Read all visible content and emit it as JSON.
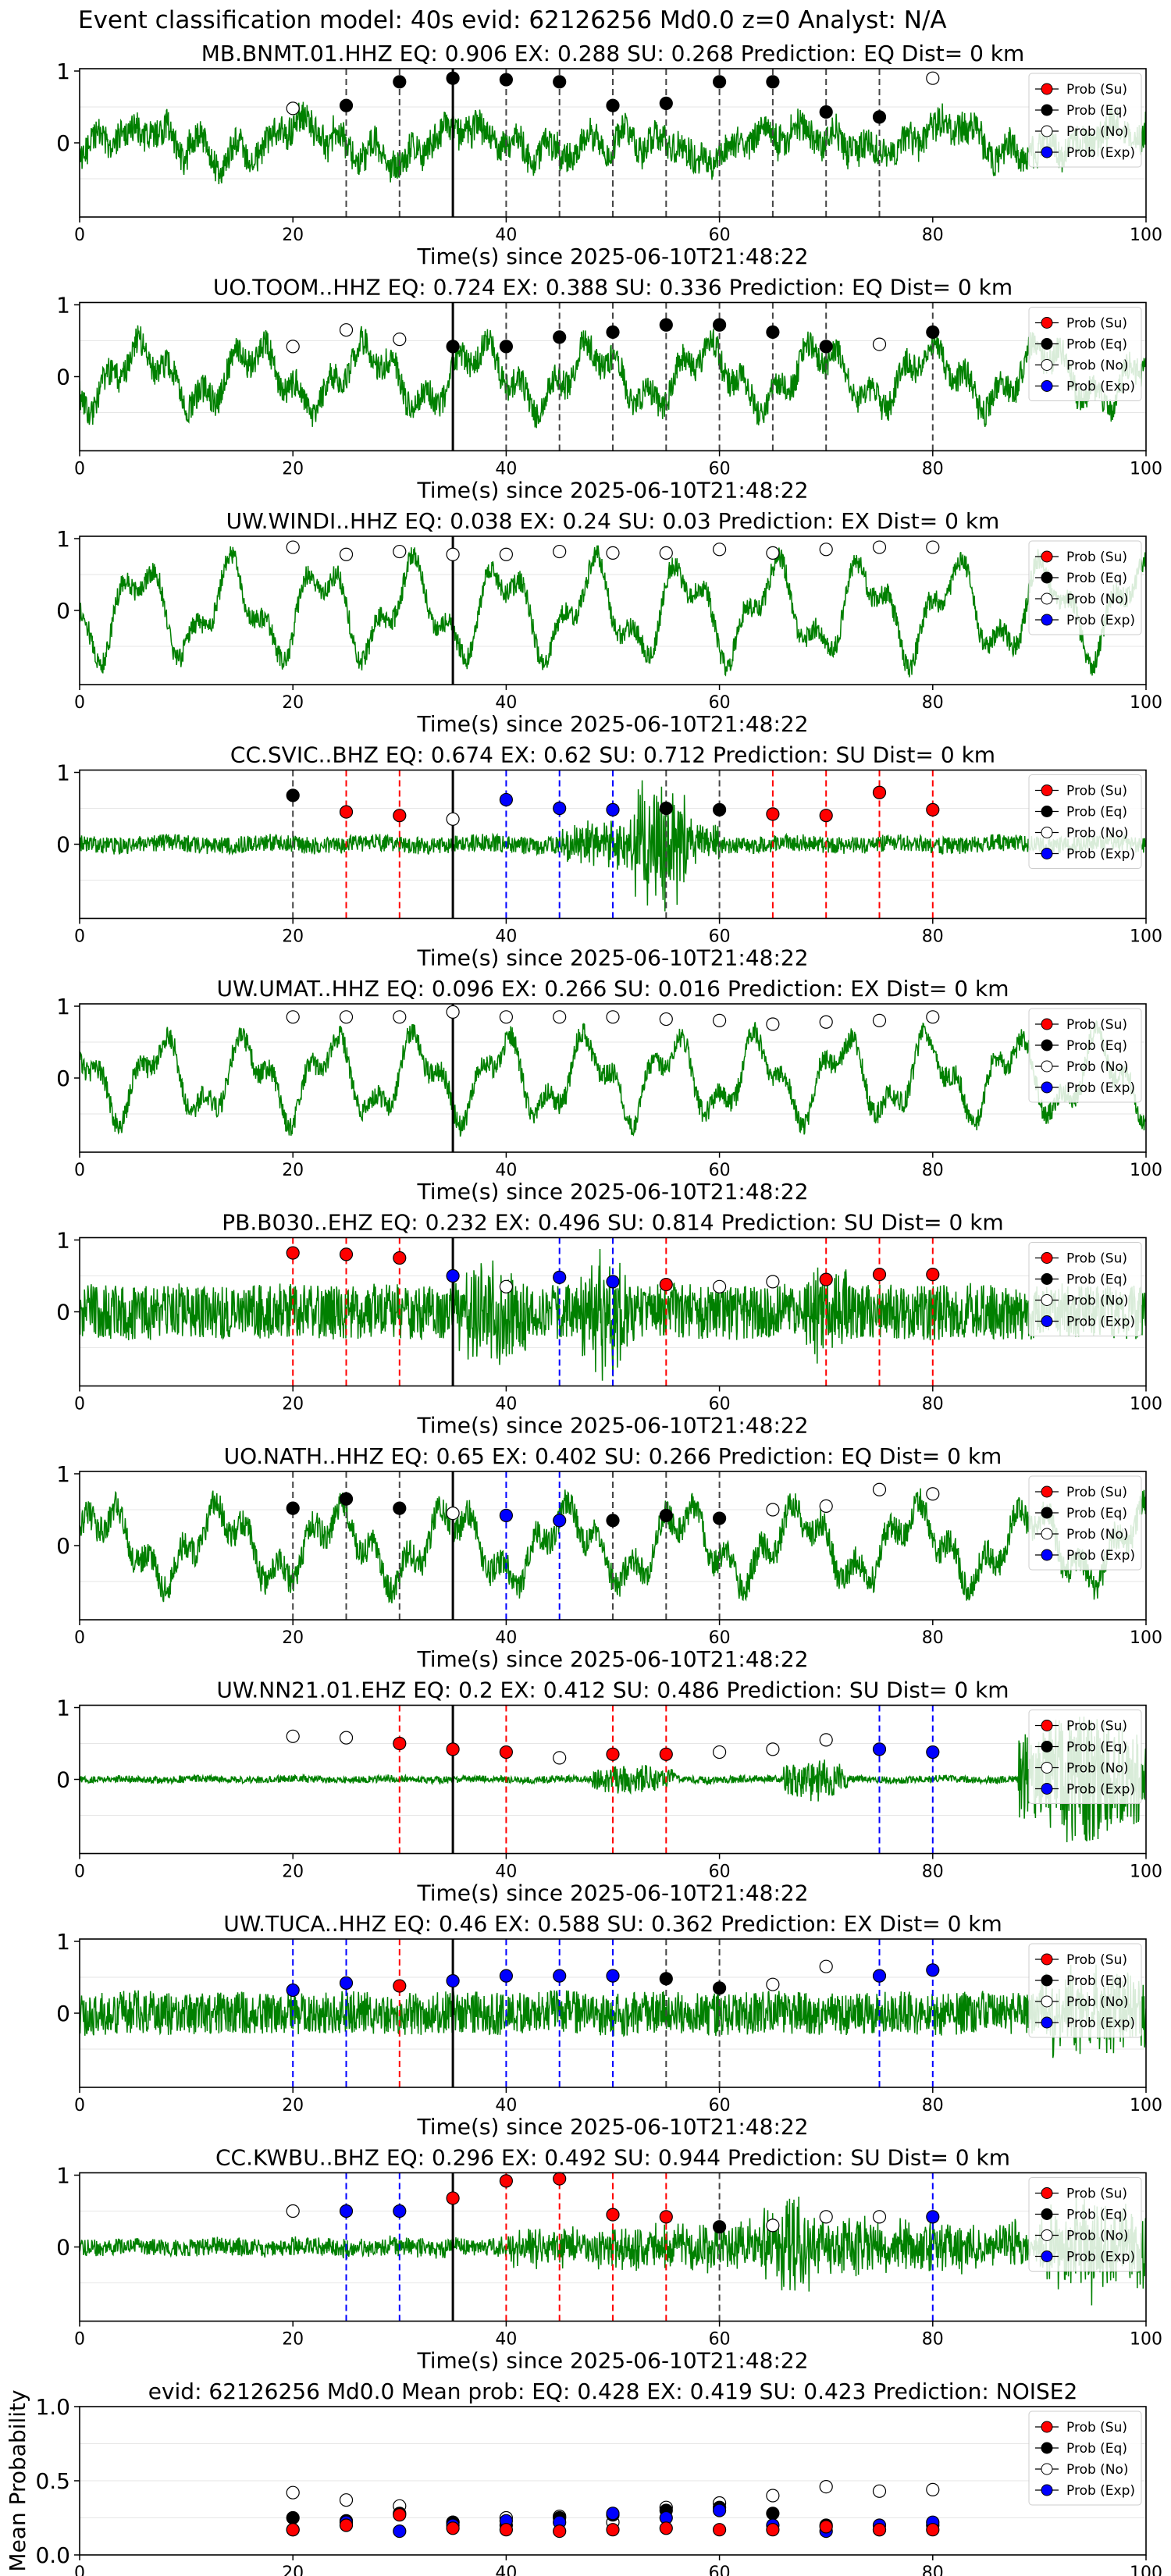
{
  "figure": {
    "suptitle": "Event classification model: 40s evid: 62126256 Md0.0 z=0 Analyst: N/A",
    "x_axis_label": "Time(s) since 2025-06-10T21:48:22",
    "pick_time": 35,
    "colors": {
      "waveform": "#008000",
      "su": "#ff0000",
      "eq": "#000000",
      "no": "#ffffff",
      "exp": "#0000ff",
      "pick": "#000000"
    }
  },
  "chart_data": [
    {
      "type": "line",
      "title": "MB.BNMT.01.HHZ   EQ: 0.906  EX: 0.288  SU: 0.268   Prediction: EQ    Dist= 0 km",
      "xlim": [
        0,
        100
      ],
      "ylim": [
        -1,
        1
      ],
      "xticks": [
        0,
        20,
        40,
        60,
        80,
        100
      ],
      "yticks": [
        1,
        0
      ],
      "waveform": {
        "style": "mixed",
        "noise": 0.22,
        "amp": 0.35
      },
      "legend": [
        "Prob (Su)",
        "Prob (Eq)",
        "Prob (No)",
        "Prob (Exp)"
      ],
      "windows": [
        20,
        25,
        30,
        35,
        40,
        45,
        50,
        55,
        60,
        65,
        70,
        75,
        80
      ],
      "predicted": [
        "No",
        "Eq",
        "Eq",
        "Eq",
        "Eq",
        "Eq",
        "Eq",
        "Eq",
        "Eq",
        "Eq",
        "Eq",
        "Eq",
        "No"
      ],
      "probs": [
        0.48,
        0.52,
        0.85,
        0.9,
        0.88,
        0.85,
        0.52,
        0.55,
        0.85,
        0.85,
        0.43,
        0.36,
        0.9
      ]
    },
    {
      "type": "line",
      "title": "UO.TOOM..HHZ   EQ: 0.724  EX: 0.388  SU: 0.336   Prediction: EQ    Dist= 0 km",
      "xlim": [
        0,
        100
      ],
      "ylim": [
        -1,
        1
      ],
      "xticks": [
        0,
        20,
        40,
        60,
        80,
        100
      ],
      "yticks": [
        1,
        0
      ],
      "waveform": {
        "style": "oscillating",
        "noise": 0.2,
        "amp": 0.5
      },
      "legend": [
        "Prob (Su)",
        "Prob (Eq)",
        "Prob (No)",
        "Prob (Exp)"
      ],
      "windows": [
        20,
        25,
        30,
        35,
        40,
        45,
        50,
        55,
        60,
        65,
        70,
        75,
        80
      ],
      "predicted": [
        "No",
        "No",
        "No",
        "Eq",
        "Eq",
        "Eq",
        "Eq",
        "Eq",
        "Eq",
        "Eq",
        "Eq",
        "No",
        "Eq"
      ],
      "probs": [
        0.42,
        0.65,
        0.52,
        0.42,
        0.42,
        0.55,
        0.62,
        0.72,
        0.72,
        0.62,
        0.42,
        0.45,
        0.62
      ]
    },
    {
      "type": "line",
      "title": "UW.WINDI..HHZ   EQ: 0.038  EX: 0.24  SU: 0.03   Prediction: EX    Dist= 0 km",
      "xlim": [
        0,
        100
      ],
      "ylim": [
        -1,
        1
      ],
      "xticks": [
        0,
        20,
        40,
        60,
        80,
        100
      ],
      "yticks": [
        1,
        0
      ],
      "waveform": {
        "style": "oscillating",
        "noise": 0.15,
        "amp": 0.75
      },
      "legend": [
        "Prob (Su)",
        "Prob (Eq)",
        "Prob (No)",
        "Prob (Exp)"
      ],
      "windows": [
        20,
        25,
        30,
        35,
        40,
        45,
        50,
        55,
        60,
        65,
        70,
        75,
        80
      ],
      "predicted": [
        "No",
        "No",
        "No",
        "No",
        "No",
        "No",
        "No",
        "No",
        "No",
        "No",
        "No",
        "No",
        "No"
      ],
      "probs": [
        0.88,
        0.78,
        0.82,
        0.78,
        0.78,
        0.82,
        0.8,
        0.8,
        0.85,
        0.8,
        0.85,
        0.88,
        0.88
      ]
    },
    {
      "type": "line",
      "title": "CC.SVIC..BHZ   EQ: 0.674  EX: 0.62  SU: 0.712   Prediction: SU    Dist= 0 km",
      "xlim": [
        0,
        100
      ],
      "ylim": [
        -1,
        1
      ],
      "xticks": [
        0,
        20,
        40,
        60,
        80,
        100
      ],
      "yticks": [
        1,
        0
      ],
      "waveform": {
        "style": "burst",
        "noise": 0.12,
        "amp": 0.12,
        "burst": [
          [
            52,
            57,
            0.9
          ],
          [
            45,
            60,
            0.35
          ]
        ]
      },
      "legend": [
        "Prob (Su)",
        "Prob (Eq)",
        "Prob (No)",
        "Prob (Exp)"
      ],
      "windows": [
        20,
        25,
        30,
        35,
        40,
        45,
        50,
        55,
        60,
        65,
        70,
        75,
        80
      ],
      "predicted": [
        "Eq",
        "Su",
        "Su",
        "No",
        "Exp",
        "Exp",
        "Exp",
        "Eq",
        "Eq",
        "Su",
        "Su",
        "Su",
        "Su"
      ],
      "probs": [
        0.68,
        0.45,
        0.4,
        0.35,
        0.62,
        0.5,
        0.48,
        0.5,
        0.48,
        0.42,
        0.4,
        0.72,
        0.48
      ]
    },
    {
      "type": "line",
      "title": "UW.UMAT..HHZ   EQ: 0.096  EX: 0.266  SU: 0.016   Prediction: EX    Dist= 0 km",
      "xlim": [
        0,
        100
      ],
      "ylim": [
        -1,
        1
      ],
      "xticks": [
        0,
        20,
        40,
        60,
        80,
        100
      ],
      "yticks": [
        1,
        0
      ],
      "waveform": {
        "style": "oscillating",
        "noise": 0.15,
        "amp": 0.65
      },
      "legend": [
        "Prob (Su)",
        "Prob (Eq)",
        "Prob (No)",
        "Prob (Exp)"
      ],
      "windows": [
        20,
        25,
        30,
        35,
        40,
        45,
        50,
        55,
        60,
        65,
        70,
        75,
        80
      ],
      "predicted": [
        "No",
        "No",
        "No",
        "No",
        "No",
        "No",
        "No",
        "No",
        "No",
        "No",
        "No",
        "No",
        "No"
      ],
      "probs": [
        0.85,
        0.85,
        0.85,
        0.92,
        0.85,
        0.85,
        0.85,
        0.82,
        0.8,
        0.75,
        0.78,
        0.8,
        0.85
      ]
    },
    {
      "type": "line",
      "title": "PB.B030..EHZ   EQ: 0.232  EX: 0.496  SU: 0.814   Prediction: SU    Dist= 0 km",
      "xlim": [
        0,
        100
      ],
      "ylim": [
        -1,
        1
      ],
      "xticks": [
        0,
        20,
        40,
        60,
        80,
        100
      ],
      "yticks": [
        1,
        0
      ],
      "waveform": {
        "style": "noisy",
        "noise": 0.38,
        "amp": 0.1,
        "burst": [
          [
            35,
            42,
            0.55
          ],
          [
            47,
            52,
            0.7
          ],
          [
            68,
            72,
            0.5
          ]
        ]
      },
      "legend": [
        "Prob (Su)",
        "Prob (Eq)",
        "Prob (No)",
        "Prob (Exp)"
      ],
      "windows": [
        20,
        25,
        30,
        35,
        40,
        45,
        50,
        55,
        60,
        65,
        70,
        75,
        80
      ],
      "predicted": [
        "Su",
        "Su",
        "Su",
        "Exp",
        "No",
        "Exp",
        "Exp",
        "Su",
        "No",
        "No",
        "Su",
        "Su",
        "Su"
      ],
      "probs": [
        0.82,
        0.8,
        0.75,
        0.5,
        0.35,
        0.48,
        0.42,
        0.38,
        0.35,
        0.42,
        0.45,
        0.52,
        0.52
      ]
    },
    {
      "type": "line",
      "title": "UO.NATH..HHZ   EQ: 0.65  EX: 0.402  SU: 0.266   Prediction: EQ    Dist= 0 km",
      "xlim": [
        0,
        100
      ],
      "ylim": [
        -1,
        1
      ],
      "xticks": [
        0,
        20,
        40,
        60,
        80,
        100
      ],
      "yticks": [
        1,
        0
      ],
      "waveform": {
        "style": "oscillating",
        "noise": 0.2,
        "amp": 0.6
      },
      "legend": [
        "Prob (Su)",
        "Prob (Eq)",
        "Prob (No)",
        "Prob (Exp)"
      ],
      "windows": [
        20,
        25,
        30,
        35,
        40,
        45,
        50,
        55,
        60,
        65,
        70,
        75,
        80
      ],
      "predicted": [
        "Eq",
        "Eq",
        "Eq",
        "No",
        "Exp",
        "Exp",
        "Eq",
        "Eq",
        "Eq",
        "No",
        "No",
        "No",
        "No"
      ],
      "probs": [
        0.52,
        0.65,
        0.52,
        0.45,
        0.42,
        0.35,
        0.35,
        0.42,
        0.38,
        0.5,
        0.55,
        0.78,
        0.72
      ]
    },
    {
      "type": "line",
      "title": "UW.NN21.01.EHZ   EQ: 0.2  EX: 0.412  SU: 0.486   Prediction: SU    Dist= 0 km",
      "xlim": [
        0,
        100
      ],
      "ylim": [
        -1,
        1
      ],
      "xticks": [
        0,
        20,
        40,
        60,
        80,
        100
      ],
      "yticks": [
        1,
        0
      ],
      "waveform": {
        "style": "quiet",
        "noise": 0.05,
        "amp": 0.05,
        "burst": [
          [
            48,
            56,
            0.2
          ],
          [
            66,
            72,
            0.28
          ],
          [
            88,
            100,
            0.95
          ]
        ]
      },
      "legend": [
        "Prob (Su)",
        "Prob (Eq)",
        "Prob (No)",
        "Prob (Exp)"
      ],
      "windows": [
        20,
        25,
        30,
        35,
        40,
        45,
        50,
        55,
        60,
        65,
        70,
        75,
        80
      ],
      "predicted": [
        "No",
        "No",
        "Su",
        "Su",
        "Su",
        "No",
        "Su",
        "Su",
        "No",
        "No",
        "No",
        "Exp",
        "Exp"
      ],
      "probs": [
        0.6,
        0.58,
        0.5,
        0.42,
        0.38,
        0.3,
        0.35,
        0.35,
        0.38,
        0.42,
        0.55,
        0.42,
        0.38
      ]
    },
    {
      "type": "line",
      "title": "UW.TUCA..HHZ   EQ: 0.46  EX: 0.588  SU: 0.362   Prediction: EX    Dist= 0 km",
      "xlim": [
        0,
        100
      ],
      "ylim": [
        -1,
        1
      ],
      "xticks": [
        0,
        20,
        40,
        60,
        80,
        100
      ],
      "yticks": [
        1,
        0
      ],
      "waveform": {
        "style": "noisy",
        "noise": 0.3,
        "amp": 0.1,
        "burst": [
          [
            90,
            100,
            0.5
          ]
        ]
      },
      "legend": [
        "Prob (Su)",
        "Prob (Eq)",
        "Prob (No)",
        "Prob (Exp)"
      ],
      "windows": [
        20,
        25,
        30,
        35,
        40,
        45,
        50,
        55,
        60,
        65,
        70,
        75,
        80
      ],
      "predicted": [
        "Exp",
        "Exp",
        "Su",
        "Exp",
        "Exp",
        "Exp",
        "Exp",
        "Eq",
        "Eq",
        "No",
        "No",
        "Exp",
        "Exp"
      ],
      "probs": [
        0.32,
        0.42,
        0.38,
        0.45,
        0.52,
        0.52,
        0.52,
        0.48,
        0.35,
        0.4,
        0.65,
        0.52,
        0.6
      ]
    },
    {
      "type": "line",
      "title": "CC.KWBU..BHZ   EQ: 0.296  EX: 0.492  SU: 0.944   Prediction: SU    Dist= 0 km",
      "xlim": [
        0,
        100
      ],
      "ylim": [
        -1,
        1
      ],
      "xticks": [
        0,
        20,
        40,
        60,
        80,
        100
      ],
      "yticks": [
        1,
        0
      ],
      "waveform": {
        "style": "rising",
        "noise": 0.12,
        "amp": 0.08,
        "burst": [
          [
            40,
            100,
            0.3
          ],
          [
            63,
            70,
            0.45
          ],
          [
            90,
            100,
            0.55
          ]
        ]
      },
      "legend": [
        "Prob (Su)",
        "Prob (Eq)",
        "Prob (No)",
        "Prob (Exp)"
      ],
      "windows": [
        20,
        25,
        30,
        35,
        40,
        45,
        50,
        55,
        60,
        65,
        70,
        75,
        80
      ],
      "predicted": [
        "No",
        "Exp",
        "Exp",
        "Su",
        "Su",
        "Su",
        "Su",
        "Su",
        "Eq",
        "No",
        "No",
        "No",
        "Exp"
      ],
      "probs": [
        0.5,
        0.5,
        0.5,
        0.68,
        0.92,
        0.95,
        0.45,
        0.42,
        0.28,
        0.3,
        0.42,
        0.42,
        0.42
      ]
    },
    {
      "type": "scatter",
      "title": "evid: 62126256  Md0.0  Mean prob:   EQ: 0.428  EX: 0.419  SU: 0.423   Prediction: NOISE2",
      "ylabel": "Mean Probability",
      "xlim": [
        0,
        100
      ],
      "ylim": [
        0,
        1
      ],
      "xticks": [
        0,
        20,
        40,
        60,
        80,
        100
      ],
      "yticks": [
        0.0,
        0.5,
        1.0
      ],
      "legend": [
        "Prob (Su)",
        "Prob (Eq)",
        "Prob (No)",
        "Prob (Exp)"
      ],
      "x": [
        20,
        25,
        30,
        35,
        40,
        45,
        50,
        55,
        60,
        65,
        70,
        75,
        80
      ],
      "series": [
        {
          "name": "Prob (Su)",
          "values": [
            0.17,
            0.2,
            0.27,
            0.18,
            0.17,
            0.16,
            0.17,
            0.18,
            0.17,
            0.17,
            0.19,
            0.17,
            0.17
          ]
        },
        {
          "name": "Prob (Eq)",
          "values": [
            0.25,
            0.23,
            0.28,
            0.22,
            0.2,
            0.25,
            0.27,
            0.3,
            0.32,
            0.28,
            0.2,
            0.17,
            0.2
          ]
        },
        {
          "name": "Prob (No)",
          "values": [
            0.42,
            0.37,
            0.33,
            0.22,
            0.25,
            0.26,
            0.22,
            0.32,
            0.35,
            0.4,
            0.46,
            0.43,
            0.44
          ]
        },
        {
          "name": "Prob (Exp)",
          "values": [
            0.17,
            0.22,
            0.16,
            0.2,
            0.23,
            0.22,
            0.28,
            0.25,
            0.3,
            0.2,
            0.16,
            0.2,
            0.22
          ]
        }
      ]
    }
  ]
}
